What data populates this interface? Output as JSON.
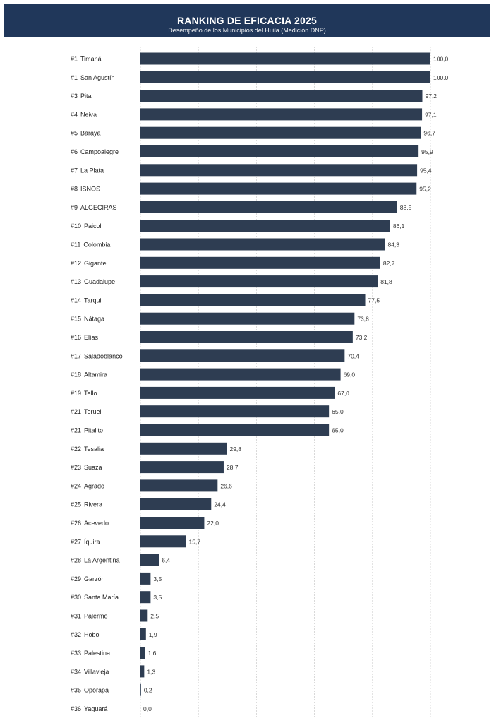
{
  "header": {
    "title": "RANKING DE EFICACIA 2025",
    "subtitle": "Desempeño de los Municipios del Huila (Medición DNP)"
  },
  "colors": {
    "header_background": "#20375a",
    "bar": "#2e3d52",
    "gridline": "#d0d0d0"
  },
  "chart_data": {
    "type": "bar",
    "orientation": "horizontal",
    "title": "RANKING DE EFICACIA 2025",
    "subtitle": "Desempeño de los Municipios del Huila (Medición DNP)",
    "xlim": [
      0,
      100
    ],
    "grid": "vertical dashed",
    "rows": [
      {
        "rank": "#1",
        "name": "Timaná",
        "value": 100.0,
        "label": "100,0"
      },
      {
        "rank": "#1",
        "name": "San Agustín",
        "value": 100.0,
        "label": "100,0"
      },
      {
        "rank": "#3",
        "name": "Pital",
        "value": 97.2,
        "label": "97,2"
      },
      {
        "rank": "#4",
        "name": "Neiva",
        "value": 97.1,
        "label": "97,1"
      },
      {
        "rank": "#5",
        "name": "Baraya",
        "value": 96.7,
        "label": "96,7"
      },
      {
        "rank": "#6",
        "name": "Campoalegre",
        "value": 95.9,
        "label": "95,9"
      },
      {
        "rank": "#7",
        "name": "La Plata",
        "value": 95.4,
        "label": "95,4"
      },
      {
        "rank": "#8",
        "name": "ISNOS",
        "value": 95.2,
        "label": "95,2"
      },
      {
        "rank": "#9",
        "name": "ALGECIRAS",
        "value": 88.5,
        "label": "88,5"
      },
      {
        "rank": "#10",
        "name": "Paicol",
        "value": 86.1,
        "label": "86,1"
      },
      {
        "rank": "#11",
        "name": "Colombia",
        "value": 84.3,
        "label": "84,3"
      },
      {
        "rank": "#12",
        "name": "Gigante",
        "value": 82.7,
        "label": "82,7"
      },
      {
        "rank": "#13",
        "name": "Guadalupe",
        "value": 81.8,
        "label": "81,8"
      },
      {
        "rank": "#14",
        "name": "Tarqui",
        "value": 77.5,
        "label": "77,5"
      },
      {
        "rank": "#15",
        "name": "Nátaga",
        "value": 73.8,
        "label": "73,8"
      },
      {
        "rank": "#16",
        "name": "Elías",
        "value": 73.2,
        "label": "73,2"
      },
      {
        "rank": "#17",
        "name": "Saladoblanco",
        "value": 70.4,
        "label": "70,4"
      },
      {
        "rank": "#18",
        "name": "Altamira",
        "value": 69.0,
        "label": "69,0"
      },
      {
        "rank": "#19",
        "name": "Tello",
        "value": 67.0,
        "label": "67,0"
      },
      {
        "rank": "#21",
        "name": "Teruel",
        "value": 65.0,
        "label": "65,0"
      },
      {
        "rank": "#21",
        "name": "Pitalito",
        "value": 65.0,
        "label": "65,0"
      },
      {
        "rank": "#22",
        "name": "Tesalia",
        "value": 29.8,
        "label": "29,8"
      },
      {
        "rank": "#23",
        "name": "Suaza",
        "value": 28.7,
        "label": "28,7"
      },
      {
        "rank": "#24",
        "name": "Agrado",
        "value": 26.6,
        "label": "26,6"
      },
      {
        "rank": "#25",
        "name": "Rivera",
        "value": 24.4,
        "label": "24,4"
      },
      {
        "rank": "#26",
        "name": "Acevedo",
        "value": 22.0,
        "label": "22,0"
      },
      {
        "rank": "#27",
        "name": "Íquira",
        "value": 15.7,
        "label": "15,7"
      },
      {
        "rank": "#28",
        "name": "La Argentina",
        "value": 6.4,
        "label": "6,4"
      },
      {
        "rank": "#29",
        "name": "Garzón",
        "value": 3.5,
        "label": "3,5"
      },
      {
        "rank": "#30",
        "name": "Santa María",
        "value": 3.5,
        "label": "3,5"
      },
      {
        "rank": "#31",
        "name": "Palermo",
        "value": 2.5,
        "label": "2,5"
      },
      {
        "rank": "#32",
        "name": "Hobo",
        "value": 1.9,
        "label": "1,9"
      },
      {
        "rank": "#33",
        "name": "Palestina",
        "value": 1.6,
        "label": "1,6"
      },
      {
        "rank": "#34",
        "name": "Villavieja",
        "value": 1.3,
        "label": "1,3"
      },
      {
        "rank": "#35",
        "name": "Oporapa",
        "value": 0.2,
        "label": "0,2"
      },
      {
        "rank": "#36",
        "name": "Yaguará",
        "value": 0.0,
        "label": "0,0"
      }
    ]
  }
}
